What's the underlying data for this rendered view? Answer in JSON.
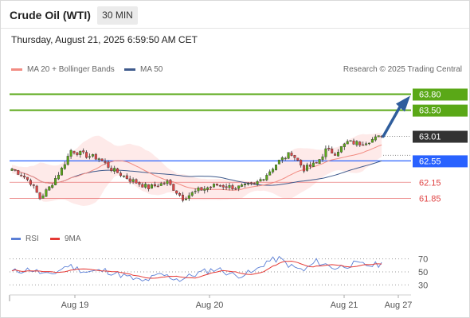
{
  "header": {
    "title": "Crude Oil (WTI)",
    "timeframe": "30 MIN"
  },
  "datetime": "Thursday, August 21, 2025 6:59:50 AM CET",
  "credit": "Research © 2025 Trading Central",
  "colors": {
    "support_green": "#5aa817",
    "current_price": "#333333",
    "pivot_blue": "#2962ff",
    "resistance_red": "#e04545",
    "arrow": "#2f5d9c",
    "ma20": "#f28b82",
    "ma50": "#3f5a8c",
    "candle_up": "#5aa817",
    "candle_down": "#e04545",
    "rsi_line": "#5b7fd6",
    "rsi_ma": "#e53935"
  },
  "chart_data": [
    {
      "type": "candlestick",
      "legend": [
        {
          "name": "MA 20 + Bollinger Bands",
          "color": "#f28b82"
        },
        {
          "name": "MA 50",
          "color": "#3f5a8c"
        }
      ],
      "x_tick_labels": [
        "Aug 19",
        "Aug 20",
        "Aug 21",
        "Aug 27"
      ],
      "ylim": [
        61.35,
        64.06
      ],
      "levels": [
        {
          "value": 63.8,
          "label": "63.80",
          "kind": "target"
        },
        {
          "value": 63.5,
          "label": "63.50",
          "kind": "resistance"
        },
        {
          "value": 63.01,
          "label": "63.01",
          "kind": "current"
        },
        {
          "value": 62.55,
          "label": "62.55",
          "kind": "pivot"
        },
        {
          "value": 62.15,
          "label": "62.15",
          "kind": "support"
        },
        {
          "value": 61.85,
          "label": "61.85",
          "kind": "support"
        }
      ],
      "anchors": [
        {
          "i": 0,
          "c": 62.4
        },
        {
          "i": 3,
          "c": 62.3
        },
        {
          "i": 6,
          "c": 62.15
        },
        {
          "i": 9,
          "c": 61.85
        },
        {
          "i": 12,
          "c": 62.05
        },
        {
          "i": 16,
          "c": 62.4
        },
        {
          "i": 19,
          "c": 62.75
        },
        {
          "i": 24,
          "c": 62.65
        },
        {
          "i": 28,
          "c": 62.6
        },
        {
          "i": 32,
          "c": 62.4
        },
        {
          "i": 38,
          "c": 62.2
        },
        {
          "i": 44,
          "c": 62.05
        },
        {
          "i": 50,
          "c": 62.15
        },
        {
          "i": 55,
          "c": 61.85
        },
        {
          "i": 60,
          "c": 62.0
        },
        {
          "i": 66,
          "c": 62.1
        },
        {
          "i": 72,
          "c": 62.05
        },
        {
          "i": 78,
          "c": 62.1
        },
        {
          "i": 82,
          "c": 62.3
        },
        {
          "i": 86,
          "c": 62.55
        },
        {
          "i": 90,
          "c": 62.7
        },
        {
          "i": 94,
          "c": 62.4
        },
        {
          "i": 98,
          "c": 62.5
        },
        {
          "i": 101,
          "c": 62.75
        },
        {
          "i": 104,
          "c": 62.7
        },
        {
          "i": 108,
          "c": 62.9
        },
        {
          "i": 112,
          "c": 62.88
        },
        {
          "i": 116,
          "c": 62.95
        },
        {
          "i": 119,
          "c": 63.01
        }
      ],
      "projection": {
        "from": 63.01,
        "to": 63.8
      }
    },
    {
      "type": "line",
      "legend": [
        {
          "name": "RSI",
          "color": "#5b7fd6"
        },
        {
          "name": "9MA",
          "color": "#e53935"
        }
      ],
      "ylim": [
        22,
        78
      ],
      "y_tick_labels": [
        "70",
        "50",
        "30"
      ],
      "reference_lines": [
        70,
        50,
        30
      ],
      "rsi_anchors": [
        {
          "i": 0,
          "v": 50
        },
        {
          "i": 6,
          "v": 54
        },
        {
          "i": 12,
          "v": 44
        },
        {
          "i": 18,
          "v": 60
        },
        {
          "i": 24,
          "v": 50
        },
        {
          "i": 30,
          "v": 52
        },
        {
          "i": 36,
          "v": 44
        },
        {
          "i": 42,
          "v": 35
        },
        {
          "i": 48,
          "v": 46
        },
        {
          "i": 54,
          "v": 38
        },
        {
          "i": 60,
          "v": 48
        },
        {
          "i": 66,
          "v": 55
        },
        {
          "i": 72,
          "v": 44
        },
        {
          "i": 78,
          "v": 50
        },
        {
          "i": 82,
          "v": 66
        },
        {
          "i": 86,
          "v": 70
        },
        {
          "i": 90,
          "v": 58
        },
        {
          "i": 94,
          "v": 52
        },
        {
          "i": 98,
          "v": 66
        },
        {
          "i": 104,
          "v": 56
        },
        {
          "i": 110,
          "v": 62
        },
        {
          "i": 116,
          "v": 60
        },
        {
          "i": 119,
          "v": 62
        }
      ]
    }
  ]
}
